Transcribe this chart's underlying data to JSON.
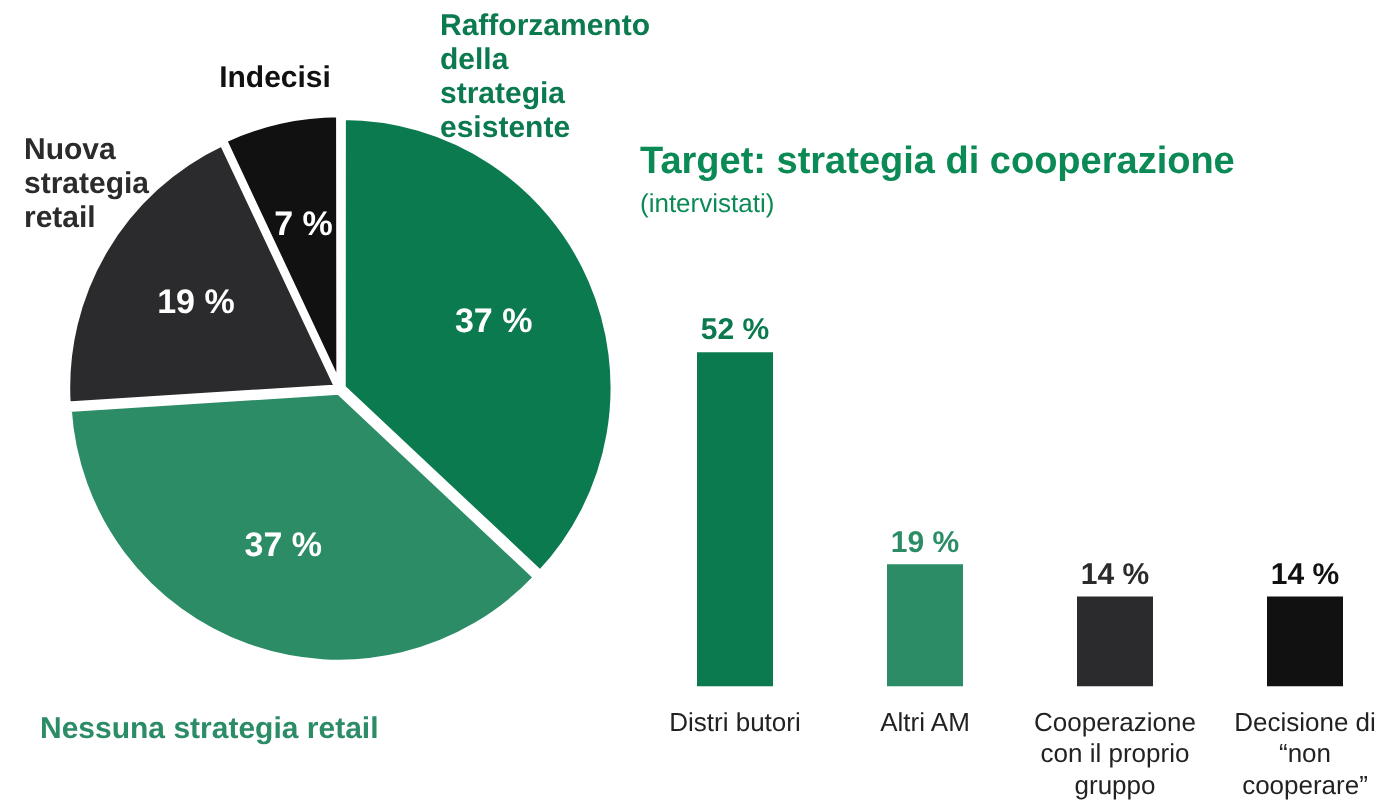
{
  "chart_data": [
    {
      "type": "pie",
      "categories": [
        "Rafforzamento della strategia esistente",
        "Nessuna strategia retail",
        "Nuova strategia retail",
        "Indecisi"
      ],
      "values": [
        37,
        37,
        19,
        7
      ],
      "value_labels": [
        "37 %",
        "37 %",
        "19 %",
        "7 %"
      ],
      "colors": [
        "#0b7a4e",
        "#2b8c66",
        "#2b2b2d",
        "#111111"
      ],
      "legend": false
    },
    {
      "type": "bar",
      "title": "Target: strategia di cooperazione",
      "subtitle": "(intervistati)",
      "categories": [
        "Distri butori",
        "Altri AM",
        "Cooperazione con il proprio gruppo",
        "Decisione di “non cooperare”"
      ],
      "values": [
        52,
        19,
        14,
        14
      ],
      "value_labels": [
        "52 %",
        "19 %",
        "14 %",
        "14 %"
      ],
      "colors": [
        "#0b7a4e",
        "#2b8c66",
        "#2b2b2d",
        "#111111"
      ],
      "legend": false
    }
  ]
}
